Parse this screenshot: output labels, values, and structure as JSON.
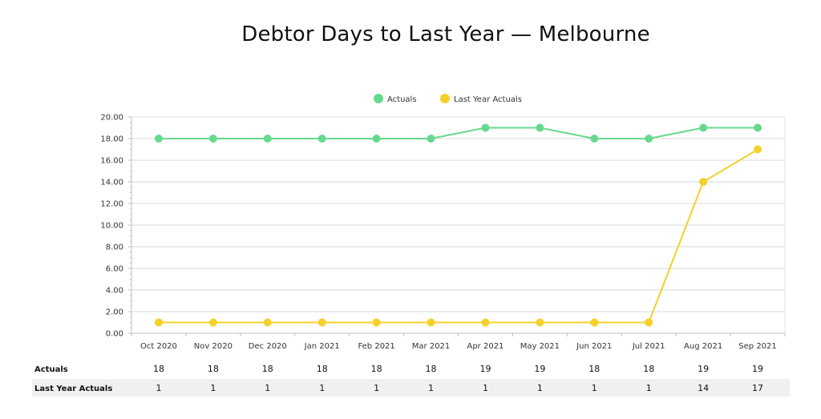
{
  "chart_data": {
    "type": "line",
    "title": "Debtor Days to Last Year — Melbourne",
    "categories": [
      "Oct 2020",
      "Nov 2020",
      "Dec 2020",
      "Jan 2021",
      "Feb 2021",
      "Mar 2021",
      "Apr 2021",
      "May 2021",
      "Jun 2021",
      "Jul 2021",
      "Aug 2021",
      "Sep 2021"
    ],
    "ylim": [
      0,
      20
    ],
    "yticks": [
      "0.00",
      "2.00",
      "4.00",
      "6.00",
      "8.00",
      "10.00",
      "12.00",
      "14.00",
      "16.00",
      "18.00",
      "20.00"
    ],
    "grid": true,
    "legend_position": "top-center",
    "series": [
      {
        "name": "Actuals",
        "color": "#66d98f",
        "values": [
          18,
          18,
          18,
          18,
          18,
          18,
          19,
          19,
          18,
          18,
          19,
          19
        ]
      },
      {
        "name": "Last Year Actuals",
        "color": "#f5d02a",
        "values": [
          1,
          1,
          1,
          1,
          1,
          1,
          1,
          1,
          1,
          1,
          14,
          17
        ]
      }
    ],
    "table": {
      "rows": [
        {
          "label": "Actuals",
          "values": [
            "18",
            "18",
            "18",
            "18",
            "18",
            "18",
            "19",
            "19",
            "18",
            "18",
            "19",
            "19"
          ]
        },
        {
          "label": "Last Year Actuals",
          "values": [
            "1",
            "1",
            "1",
            "1",
            "1",
            "1",
            "1",
            "1",
            "1",
            "1",
            "14",
            "17"
          ]
        }
      ]
    }
  }
}
